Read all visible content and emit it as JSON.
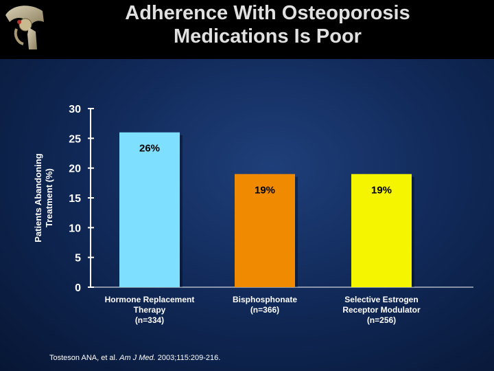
{
  "title": {
    "line1": "Adherence With Osteoporosis",
    "line2": "Medications Is Poor"
  },
  "logo_icon": "hip-joint-bone-icon",
  "colors": {
    "background": "#112a5a",
    "header": "#000000",
    "bar_hrt": "#7fdfff",
    "bar_bisphosphonate": "#f08a00",
    "bar_serm": "#f5f500",
    "axis": "#ffffff"
  },
  "chart_data": {
    "type": "bar",
    "ylabel_lines": [
      "Patients Abandoning",
      "Treatment (%)"
    ],
    "xlabel": "",
    "ylim": [
      0,
      30
    ],
    "yticks": [
      0,
      5,
      10,
      15,
      20,
      25,
      30
    ],
    "categories": [
      {
        "lines": [
          "Hormone Replacement",
          "Therapy",
          "(n=334)"
        ],
        "value": 26,
        "label": "26%",
        "color": "#7fdfff"
      },
      {
        "lines": [
          "Bisphosphonate",
          "(n=366)"
        ],
        "value": 19,
        "label": "19%",
        "color": "#f08a00"
      },
      {
        "lines": [
          "Selective Estrogen",
          "Receptor Modulator",
          "(n=256)"
        ],
        "value": 19,
        "label": "19%",
        "color": "#f5f500"
      }
    ]
  },
  "citation": {
    "authors": "Tosteson ANA, et al.",
    "journal": "Am J Med.",
    "details": "2003;115:209-216."
  }
}
